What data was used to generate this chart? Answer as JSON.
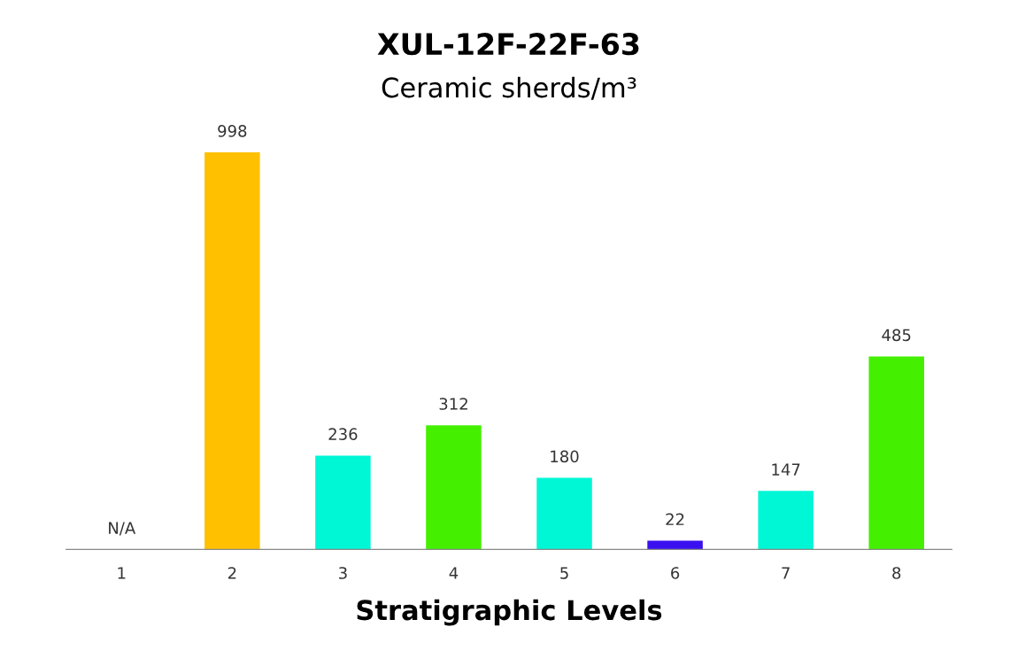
{
  "chart_data": {
    "type": "bar",
    "title": "XUL-12F-22F-63",
    "subtitle": "Ceramic sherds/m³",
    "xlabel": "Stratigraphic Levels",
    "categories": [
      "1",
      "2",
      "3",
      "4",
      "5",
      "6",
      "7",
      "8"
    ],
    "values": [
      null,
      998,
      236,
      312,
      180,
      22,
      147,
      485
    ],
    "colors": [
      null,
      "#ffc000",
      "#00f7d6",
      "#44f000",
      "#00f7d6",
      "#3a0ff0",
      "#00f7d6",
      "#44f000"
    ],
    "value_labels": [
      "N/A",
      "998",
      "236",
      "312",
      "180",
      "22",
      "147",
      "485"
    ],
    "grid": false,
    "legend": false
  }
}
